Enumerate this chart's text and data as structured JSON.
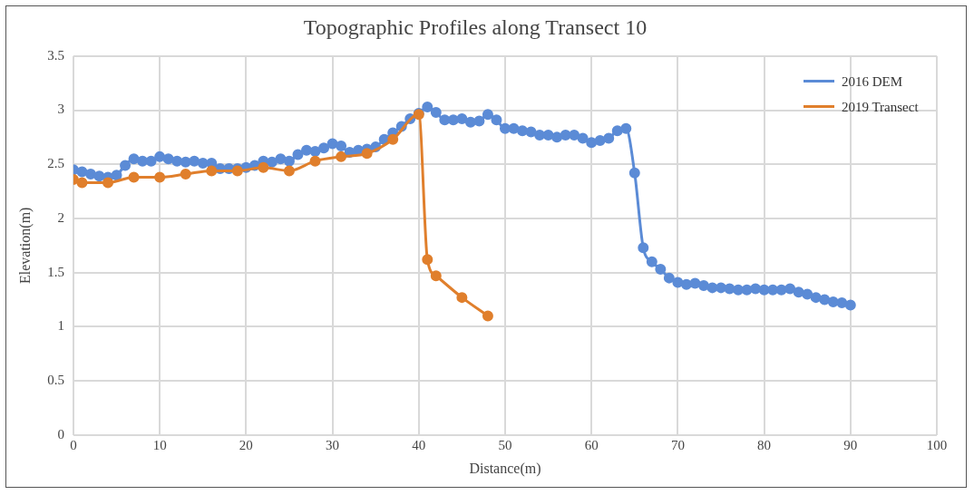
{
  "chart_data": {
    "type": "line",
    "title": "Topographic Profiles along Transect 10",
    "xlabel": "Distance(m)",
    "ylabel": "Elevation(m)",
    "xlim": [
      0,
      100
    ],
    "xticks": [
      0,
      10,
      20,
      30,
      40,
      50,
      60,
      70,
      80,
      90,
      100
    ],
    "ylim": [
      0,
      3.5
    ],
    "yticks": [
      0,
      0.5,
      1,
      1.5,
      2,
      2.5,
      3,
      3.5
    ],
    "grid": true,
    "legend": "top right",
    "marker": "circle",
    "series": [
      {
        "name": "2016 DEM",
        "color": "#5b8bd6",
        "x": [
          0,
          1,
          2,
          3,
          4,
          5,
          6,
          7,
          8,
          9,
          10,
          11,
          12,
          13,
          14,
          15,
          16,
          17,
          18,
          19,
          20,
          21,
          22,
          23,
          24,
          25,
          26,
          27,
          28,
          29,
          30,
          31,
          32,
          33,
          34,
          35,
          36,
          37,
          38,
          39,
          40,
          41,
          42,
          43,
          44,
          45,
          46,
          47,
          48,
          49,
          50,
          51,
          52,
          53,
          54,
          55,
          56,
          57,
          58,
          59,
          60,
          61,
          62,
          63,
          64,
          65,
          66,
          67,
          68,
          69,
          70,
          71,
          72,
          73,
          74,
          75,
          76,
          77,
          78,
          79,
          80,
          81,
          82,
          83,
          84,
          85,
          86,
          87,
          88,
          89,
          90
        ],
        "values": [
          2.45,
          2.43,
          2.41,
          2.39,
          2.38,
          2.4,
          2.49,
          2.55,
          2.53,
          2.53,
          2.57,
          2.55,
          2.53,
          2.52,
          2.53,
          2.51,
          2.51,
          2.46,
          2.46,
          2.46,
          2.47,
          2.49,
          2.53,
          2.52,
          2.55,
          2.53,
          2.59,
          2.63,
          2.62,
          2.65,
          2.69,
          2.67,
          2.61,
          2.63,
          2.64,
          2.66,
          2.73,
          2.79,
          2.85,
          2.92,
          2.97,
          3.03,
          2.98,
          2.91,
          2.91,
          2.92,
          2.89,
          2.9,
          2.96,
          2.91,
          2.83,
          2.83,
          2.81,
          2.8,
          2.77,
          2.77,
          2.75,
          2.77,
          2.77,
          2.74,
          2.7,
          2.72,
          2.74,
          2.81,
          2.83,
          2.42,
          1.73,
          1.6,
          1.53,
          1.45,
          1.41,
          1.39,
          1.4,
          1.38,
          1.36,
          1.36,
          1.35,
          1.34,
          1.34,
          1.35,
          1.34,
          1.34,
          1.34,
          1.35,
          1.32,
          1.3,
          1.27,
          1.25,
          1.23,
          1.22,
          1.2
        ]
      },
      {
        "name": "2019 Transect",
        "color": "#e07f2c",
        "x": [
          0,
          1,
          4,
          7,
          10,
          13,
          16,
          19,
          22,
          25,
          28,
          31,
          34,
          37,
          40,
          41,
          42,
          45,
          48
        ],
        "values": [
          2.36,
          2.33,
          2.33,
          2.38,
          2.38,
          2.41,
          2.44,
          2.44,
          2.47,
          2.44,
          2.53,
          2.57,
          2.6,
          2.73,
          2.96,
          1.62,
          1.47,
          1.27,
          1.1
        ]
      }
    ]
  }
}
